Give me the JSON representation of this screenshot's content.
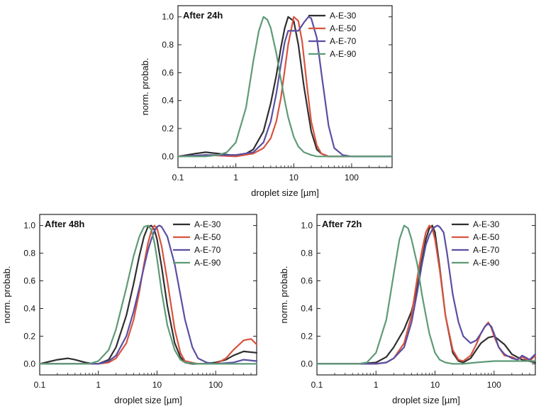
{
  "chart_data": [
    {
      "type": "line",
      "title": "After 24h",
      "xlabel": "droplet size [µm]",
      "ylabel": "norm. probab.",
      "x_scale": "log",
      "xlim": [
        0.1,
        500
      ],
      "ylim": [
        -0.08,
        1.08
      ],
      "x_ticks": [
        0.1,
        1,
        10,
        100
      ],
      "x_tick_labels": [
        "0.1",
        "1",
        "10",
        "100"
      ],
      "y_ticks": [
        0,
        0.2,
        0.4,
        0.6,
        0.8,
        1.0
      ],
      "y_tick_labels": [
        "0.0",
        "0.2",
        "0.4",
        "0.6",
        "0.8",
        "1.0"
      ],
      "grid": false,
      "legend_position": "top-right",
      "series": [
        {
          "name": "A-E-30",
          "color": "#2f2f2f",
          "x": [
            0.1,
            0.2,
            0.3,
            0.5,
            0.8,
            1.0,
            1.5,
            2,
            3,
            4,
            5,
            6,
            7,
            8,
            10,
            12,
            15,
            20,
            25,
            30,
            40,
            60,
            100,
            200,
            500
          ],
          "y": [
            0.0,
            0.02,
            0.03,
            0.02,
            0.01,
            0.01,
            0.02,
            0.05,
            0.18,
            0.38,
            0.58,
            0.78,
            0.92,
            1.0,
            0.97,
            0.8,
            0.5,
            0.18,
            0.05,
            0.02,
            0.0,
            0.0,
            0.0,
            0.0,
            0.0
          ]
        },
        {
          "name": "A-E-50",
          "color": "#d9533f",
          "x": [
            0.1,
            0.3,
            1.0,
            2,
            3,
            4,
            5,
            6,
            7,
            8,
            10,
            12,
            14,
            17,
            20,
            25,
            30,
            40,
            100,
            500
          ],
          "y": [
            0.0,
            0.01,
            0.0,
            0.02,
            0.06,
            0.13,
            0.25,
            0.42,
            0.62,
            0.8,
            1.0,
            0.97,
            0.82,
            0.5,
            0.25,
            0.08,
            0.02,
            0.0,
            0.0,
            0.0
          ]
        },
        {
          "name": "A-E-70",
          "color": "#5a4fa3",
          "x": [
            0.1,
            0.3,
            1.0,
            2,
            3,
            4,
            5,
            6,
            7,
            8,
            10,
            12,
            15,
            18,
            20,
            25,
            30,
            40,
            50,
            70,
            100,
            200,
            500
          ],
          "y": [
            0.0,
            0.01,
            0.01,
            0.03,
            0.1,
            0.25,
            0.45,
            0.66,
            0.82,
            0.9,
            0.9,
            0.9,
            0.96,
            1.0,
            0.99,
            0.85,
            0.6,
            0.22,
            0.06,
            0.01,
            0.0,
            0.0,
            0.0
          ]
        },
        {
          "name": "A-E-90",
          "color": "#5e9a78",
          "x": [
            0.1,
            0.3,
            0.5,
            0.7,
            1.0,
            1.5,
            2,
            2.5,
            3,
            3.5,
            4,
            5,
            6,
            7,
            8,
            10,
            12,
            15,
            20,
            25,
            30,
            50,
            100,
            500
          ],
          "y": [
            0.0,
            0.0,
            0.01,
            0.03,
            0.1,
            0.35,
            0.68,
            0.9,
            1.0,
            0.98,
            0.92,
            0.74,
            0.55,
            0.4,
            0.28,
            0.14,
            0.07,
            0.03,
            0.01,
            0.0,
            0.0,
            0.0,
            0.0,
            0.0
          ]
        }
      ]
    },
    {
      "type": "line",
      "title": "After 48h",
      "xlabel": "droplet size [µm]",
      "ylabel": "norm. probab.",
      "x_scale": "log",
      "xlim": [
        0.1,
        500
      ],
      "ylim": [
        -0.08,
        1.08
      ],
      "x_ticks": [
        0.1,
        1,
        10,
        100
      ],
      "x_tick_labels": [
        "0.1",
        "1",
        "10",
        "100"
      ],
      "y_ticks": [
        0,
        0.2,
        0.4,
        0.6,
        0.8,
        1.0
      ],
      "y_tick_labels": [
        "0.0",
        "0.2",
        "0.4",
        "0.6",
        "0.8",
        "1.0"
      ],
      "grid": false,
      "legend_position": "top-right",
      "series": [
        {
          "name": "A-E-30",
          "color": "#2f2f2f",
          "x": [
            0.1,
            0.2,
            0.3,
            0.4,
            0.6,
            0.8,
            1.0,
            1.5,
            2,
            3,
            4,
            5,
            6,
            7,
            8,
            9,
            10,
            12,
            15,
            20,
            25,
            30,
            40,
            60,
            100,
            150,
            200,
            300,
            500
          ],
          "y": [
            0.0,
            0.03,
            0.04,
            0.03,
            0.01,
            0.0,
            0.0,
            0.03,
            0.12,
            0.35,
            0.58,
            0.78,
            0.92,
            0.99,
            1.0,
            0.97,
            0.9,
            0.7,
            0.42,
            0.15,
            0.05,
            0.01,
            0.0,
            0.0,
            0.01,
            0.03,
            0.06,
            0.09,
            0.08
          ]
        },
        {
          "name": "A-E-50",
          "color": "#d9533f",
          "x": [
            0.1,
            0.3,
            1.0,
            1.5,
            2,
            3,
            4,
            5,
            6,
            7,
            8,
            9,
            10,
            12,
            15,
            20,
            25,
            30,
            50,
            100,
            150,
            200,
            300,
            400,
            500
          ],
          "y": [
            0.0,
            0.0,
            0.0,
            0.01,
            0.04,
            0.15,
            0.32,
            0.52,
            0.72,
            0.87,
            0.96,
            1.0,
            0.98,
            0.85,
            0.6,
            0.25,
            0.08,
            0.02,
            0.0,
            0.0,
            0.04,
            0.1,
            0.17,
            0.18,
            0.14
          ]
        },
        {
          "name": "A-E-70",
          "color": "#5a4fa3",
          "x": [
            0.1,
            0.3,
            1.0,
            1.5,
            2,
            3,
            4,
            5,
            6,
            7,
            8,
            9,
            10,
            11,
            12,
            15,
            20,
            25,
            30,
            40,
            50,
            70,
            100,
            200,
            300,
            500
          ],
          "y": [
            0.0,
            0.0,
            0.0,
            0.02,
            0.06,
            0.2,
            0.38,
            0.55,
            0.7,
            0.82,
            0.9,
            0.96,
            0.99,
            1.0,
            0.99,
            0.92,
            0.72,
            0.5,
            0.32,
            0.12,
            0.04,
            0.01,
            0.0,
            0.01,
            0.03,
            0.02
          ]
        },
        {
          "name": "A-E-90",
          "color": "#5e9a78",
          "x": [
            0.1,
            0.3,
            0.7,
            1.0,
            1.5,
            2,
            3,
            4,
            5,
            6,
            7,
            8,
            9,
            10,
            12,
            15,
            20,
            25,
            30,
            50,
            100,
            500
          ],
          "y": [
            0.0,
            0.0,
            0.0,
            0.02,
            0.1,
            0.25,
            0.55,
            0.78,
            0.92,
            0.99,
            1.0,
            0.97,
            0.88,
            0.76,
            0.52,
            0.28,
            0.1,
            0.03,
            0.01,
            0.0,
            0.0,
            0.0
          ]
        }
      ]
    },
    {
      "type": "line",
      "title": "After 72h",
      "xlabel": "droplet size [µm]",
      "ylabel": "norm. probab.",
      "x_scale": "log",
      "xlim": [
        0.1,
        500
      ],
      "ylim": [
        -0.08,
        1.08
      ],
      "x_ticks": [
        0.1,
        1,
        10,
        100
      ],
      "x_tick_labels": [
        "0.1",
        "1",
        "10",
        "100"
      ],
      "y_ticks": [
        0,
        0.2,
        0.4,
        0.6,
        0.8,
        1.0
      ],
      "y_tick_labels": [
        "0.0",
        "0.2",
        "0.4",
        "0.6",
        "0.8",
        "1.0"
      ],
      "grid": false,
      "legend_position": "top-right",
      "series": [
        {
          "name": "A-E-30",
          "color": "#2f2f2f",
          "x": [
            0.1,
            0.5,
            1.0,
            1.5,
            2,
            3,
            4,
            5,
            6,
            7,
            8,
            9,
            10,
            12,
            15,
            20,
            25,
            30,
            40,
            50,
            60,
            80,
            100,
            150,
            200,
            300,
            500
          ],
          "y": [
            0.0,
            0.0,
            0.01,
            0.05,
            0.12,
            0.25,
            0.38,
            0.55,
            0.75,
            0.9,
            0.98,
            1.0,
            0.95,
            0.7,
            0.35,
            0.08,
            0.02,
            0.01,
            0.04,
            0.1,
            0.15,
            0.19,
            0.2,
            0.14,
            0.07,
            0.03,
            0.01
          ]
        },
        {
          "name": "A-E-50",
          "color": "#d9533f",
          "x": [
            0.1,
            0.5,
            1.0,
            1.5,
            2,
            3,
            4,
            5,
            6,
            7,
            8,
            9,
            10,
            12,
            15,
            20,
            25,
            30,
            40,
            50,
            60,
            70,
            80,
            90,
            100,
            120,
            150,
            200,
            250,
            300,
            400,
            500
          ],
          "y": [
            0.0,
            0.0,
            0.0,
            0.01,
            0.04,
            0.15,
            0.35,
            0.62,
            0.82,
            0.95,
            1.0,
            0.98,
            0.9,
            0.68,
            0.35,
            0.1,
            0.03,
            0.02,
            0.06,
            0.14,
            0.22,
            0.27,
            0.3,
            0.26,
            0.2,
            0.12,
            0.06,
            0.05,
            0.03,
            0.05,
            0.02,
            0.06
          ]
        },
        {
          "name": "A-E-70",
          "color": "#5a4fa3",
          "x": [
            0.1,
            0.5,
            1.0,
            1.5,
            2,
            3,
            4,
            5,
            6,
            7,
            8,
            9,
            10,
            11,
            12,
            14,
            16,
            20,
            25,
            30,
            40,
            50,
            60,
            70,
            80,
            90,
            100,
            120,
            150,
            200,
            250,
            300,
            400,
            500
          ],
          "y": [
            0.0,
            0.0,
            0.0,
            0.01,
            0.04,
            0.12,
            0.3,
            0.52,
            0.72,
            0.86,
            0.93,
            0.97,
            0.99,
            1.0,
            0.99,
            0.95,
            0.8,
            0.5,
            0.3,
            0.2,
            0.15,
            0.17,
            0.22,
            0.27,
            0.29,
            0.27,
            0.22,
            0.12,
            0.07,
            0.04,
            0.03,
            0.06,
            0.03,
            0.07
          ]
        },
        {
          "name": "A-E-90",
          "color": "#5e9a78",
          "x": [
            0.1,
            0.3,
            0.5,
            0.7,
            1.0,
            1.5,
            2,
            2.5,
            3,
            3.5,
            4,
            5,
            6,
            7,
            8,
            10,
            12,
            15,
            20,
            25,
            30,
            50,
            100,
            200,
            500
          ],
          "y": [
            0.0,
            0.0,
            0.0,
            0.01,
            0.08,
            0.32,
            0.65,
            0.9,
            1.0,
            0.98,
            0.9,
            0.72,
            0.5,
            0.35,
            0.22,
            0.08,
            0.03,
            0.01,
            0.0,
            0.0,
            0.0,
            0.01,
            0.02,
            0.02,
            0.02
          ]
        }
      ]
    }
  ]
}
